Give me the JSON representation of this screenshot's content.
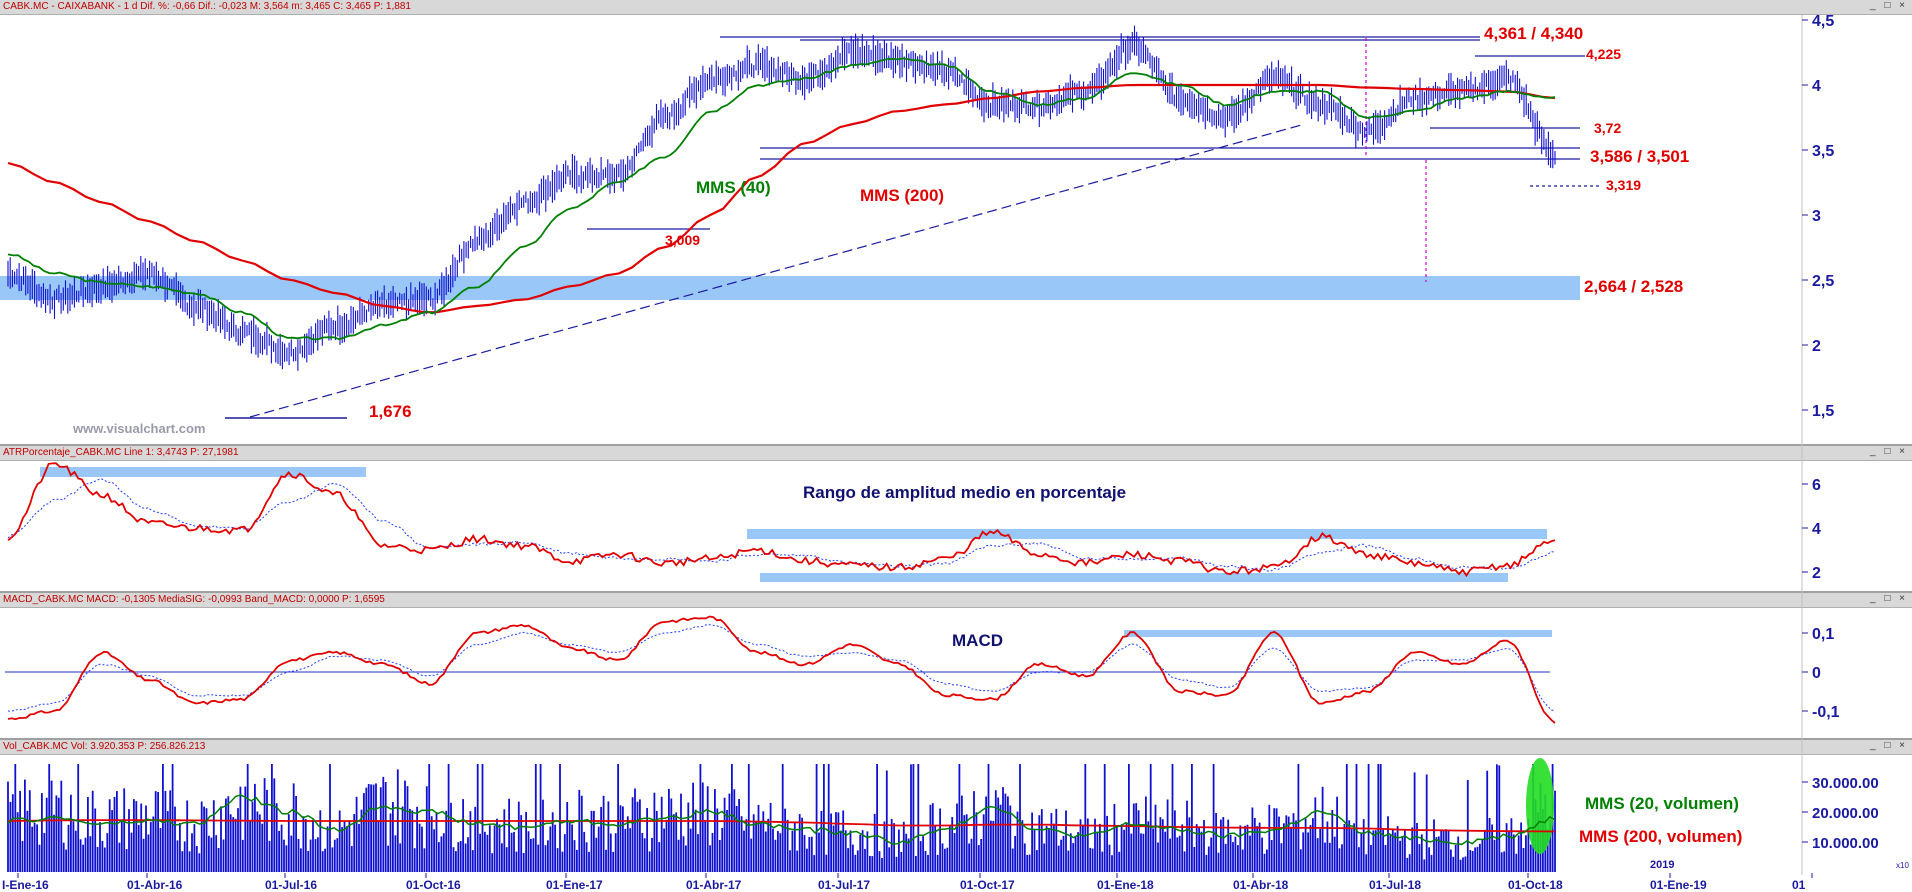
{
  "colors": {
    "price_bars": "#1010d0",
    "mms_short": "#008000",
    "mms_long": "#e00000",
    "band": "#99c8f8",
    "axis_text": "#1a1aa0",
    "annot_red": "#e00000",
    "annot_green": "#008000",
    "annot_navy": "#101070",
    "header_red": "#c00000",
    "magenta": "#d000d0",
    "watermark": "#9a9aaa"
  },
  "panes": {
    "price": {
      "header": "CABK.MC - CAIXABANK - 1 d  Dif. %: -0,66  Dif.: -0,023  M: 3,564  m: 3,465  C: 3,465  P: 1,881",
      "watermark": "www.visualchart.com",
      "yticks": [
        "4,5",
        "4",
        "3,5",
        "3",
        "2,5",
        "2",
        "1,5"
      ]
    },
    "atr": {
      "header": "ATRPorcentaje_CABK.MC  Line 1: 3,4743  P: 27,1981",
      "label": "Rango de amplitud medio en porcentaje",
      "yticks": [
        "6",
        "4",
        "2"
      ]
    },
    "macd": {
      "header": "MACD_CABK.MC  MACD: -0,1305  MediaSIG: -0,0993  Band_MACD: 0,0000  P: 1,6595",
      "label": "MACD",
      "yticks": [
        "0,1",
        "0",
        "-0,1"
      ]
    },
    "vol": {
      "header": "Vol_CABK.MC  Vol: 3.920.353  P: 256.826.213",
      "label_short": "MMS (20, volumen)",
      "label_long": "MMS (200, volumen)",
      "yticks": [
        "30.000.00",
        "20.000.00",
        "10.000.00"
      ]
    }
  },
  "window_buttons": "_ □ ×",
  "x_axis": {
    "labels": [
      "I-Ene-16",
      "01-Abr-16",
      "01-Jul-16",
      "01-Oct-16",
      "01-Ene-17",
      "01-Abr-17",
      "01-Jul-17",
      "01-Oct-17",
      "01-Ene-18",
      "01-Abr-18",
      "01-Jul-18",
      "01-Oct-18",
      "2019",
      "01-Ene-19",
      "01"
    ],
    "corner": "x10"
  },
  "annotations": {
    "mms40": "MMS (40)",
    "mms200": "MMS (200)",
    "level_4361": "4,361 / 4,340",
    "level_4225": "4,225",
    "level_372": "3,72",
    "level_3586": "3,586 / 3,501",
    "level_3319": "3,319",
    "level_3009": "3,009",
    "level_2664": "2,664 / 2,528",
    "level_1676": "1,676"
  },
  "chart_data": [
    {
      "type": "line",
      "pane": "price",
      "instrument": "CABK.MC - CAIXABANK",
      "x": [
        "2016-01",
        "2016-02",
        "2016-03",
        "2016-04",
        "2016-05",
        "2016-06",
        "2016-07",
        "2016-08",
        "2016-09",
        "2016-10",
        "2016-11",
        "2016-12",
        "2017-01",
        "2017-02",
        "2017-03",
        "2017-04",
        "2017-05",
        "2017-06",
        "2017-07",
        "2017-08",
        "2017-09",
        "2017-10",
        "2017-11",
        "2017-12",
        "2018-01",
        "2018-02",
        "2018-03",
        "2018-04",
        "2018-05",
        "2018-06",
        "2018-07",
        "2018-08",
        "2018-09",
        "2018-10"
      ],
      "series": [
        {
          "name": "CABK.MC",
          "values": [
            2.55,
            2.35,
            2.45,
            2.55,
            2.3,
            2.1,
            1.95,
            2.15,
            2.3,
            2.35,
            2.8,
            3.1,
            3.3,
            3.3,
            3.75,
            4.05,
            4.15,
            4.05,
            4.25,
            4.2,
            4.1,
            3.85,
            3.85,
            3.95,
            4.3,
            3.9,
            3.75,
            4.05,
            3.85,
            3.65,
            3.9,
            3.95,
            4.05,
            3.47
          ]
        },
        {
          "name": "MMS (40)",
          "values": [
            2.7,
            2.55,
            2.48,
            2.45,
            2.4,
            2.25,
            2.05,
            2.05,
            2.15,
            2.25,
            2.45,
            2.75,
            3.05,
            3.25,
            3.45,
            3.8,
            4.0,
            4.05,
            4.15,
            4.2,
            4.15,
            3.95,
            3.85,
            3.9,
            4.1,
            4.0,
            3.85,
            3.95,
            3.95,
            3.75,
            3.8,
            3.9,
            3.95,
            3.9
          ]
        },
        {
          "name": "MMS (200)",
          "values": [
            3.4,
            3.25,
            3.1,
            2.95,
            2.8,
            2.65,
            2.5,
            2.4,
            2.3,
            2.25,
            2.3,
            2.35,
            2.45,
            2.55,
            2.75,
            3.0,
            3.3,
            3.55,
            3.7,
            3.8,
            3.85,
            3.9,
            3.95,
            3.98,
            4.0,
            4.0,
            4.0,
            4.0,
            4.0,
            3.98,
            3.97,
            3.96,
            3.95,
            3.9
          ]
        }
      ],
      "ylim": [
        1.5,
        4.5
      ],
      "levels": [
        4.361,
        4.34,
        4.225,
        3.72,
        3.586,
        3.501,
        3.319,
        3.009,
        2.664,
        2.528,
        1.676
      ]
    },
    {
      "type": "line",
      "pane": "atr",
      "x": [
        "2016-01",
        "2016-02",
        "2016-03",
        "2016-04",
        "2016-05",
        "2016-06",
        "2016-07",
        "2016-08",
        "2016-09",
        "2016-10",
        "2016-11",
        "2016-12",
        "2017-01",
        "2017-02",
        "2017-03",
        "2017-04",
        "2017-05",
        "2017-06",
        "2017-07",
        "2017-08",
        "2017-09",
        "2017-10",
        "2017-11",
        "2017-12",
        "2018-01",
        "2018-02",
        "2018-03",
        "2018-04",
        "2018-05",
        "2018-06",
        "2018-07",
        "2018-08",
        "2018-09",
        "2018-10"
      ],
      "series": [
        {
          "name": "ATRPorcentaje",
          "values": [
            3.6,
            6.9,
            5.5,
            4.2,
            4.0,
            3.9,
            6.5,
            5.5,
            3.2,
            3.0,
            3.5,
            3.2,
            2.5,
            2.8,
            2.4,
            2.6,
            3.0,
            2.5,
            2.3,
            2.2,
            2.6,
            3.8,
            2.8,
            2.4,
            2.8,
            2.5,
            2.0,
            2.2,
            3.6,
            2.8,
            2.4,
            2.0,
            2.3,
            3.47
          ]
        }
      ],
      "ylim": [
        1.0,
        7.0
      ]
    },
    {
      "type": "line",
      "pane": "macd",
      "x": [
        "2016-01",
        "2016-02",
        "2016-03",
        "2016-04",
        "2016-05",
        "2016-06",
        "2016-07",
        "2016-08",
        "2016-09",
        "2016-10",
        "2016-11",
        "2016-12",
        "2017-01",
        "2017-02",
        "2017-03",
        "2017-04",
        "2017-05",
        "2017-06",
        "2017-07",
        "2017-08",
        "2017-09",
        "2017-10",
        "2017-11",
        "2017-12",
        "2018-01",
        "2018-02",
        "2018-03",
        "2018-04",
        "2018-05",
        "2018-06",
        "2018-07",
        "2018-08",
        "2018-09",
        "2018-10"
      ],
      "series": [
        {
          "name": "MACD",
          "values": [
            -0.12,
            -0.1,
            0.05,
            -0.02,
            -0.08,
            -0.07,
            0.03,
            0.05,
            0.02,
            -0.03,
            0.1,
            0.12,
            0.06,
            0.03,
            0.13,
            0.14,
            0.05,
            0.02,
            0.07,
            0.02,
            -0.06,
            -0.07,
            0.02,
            -0.01,
            0.1,
            -0.05,
            -0.06,
            0.1,
            -0.08,
            -0.05,
            0.05,
            0.02,
            0.08,
            -0.13
          ]
        },
        {
          "name": "MediaSIG",
          "values": [
            -0.1,
            -0.08,
            0.02,
            -0.01,
            -0.06,
            -0.06,
            0.0,
            0.04,
            0.03,
            -0.01,
            0.07,
            0.1,
            0.07,
            0.05,
            0.1,
            0.12,
            0.07,
            0.04,
            0.05,
            0.03,
            -0.03,
            -0.05,
            0.0,
            0.0,
            0.07,
            -0.02,
            -0.04,
            0.06,
            -0.05,
            -0.04,
            0.03,
            0.03,
            0.06,
            -0.1
          ]
        }
      ],
      "ylim": [
        -0.17,
        0.15
      ]
    },
    {
      "type": "bar",
      "pane": "vol",
      "x": [
        "2016-01",
        "2016-02",
        "2016-03",
        "2016-04",
        "2016-05",
        "2016-06",
        "2016-07",
        "2016-08",
        "2016-09",
        "2016-10",
        "2016-11",
        "2016-12",
        "2017-01",
        "2017-02",
        "2017-03",
        "2017-04",
        "2017-05",
        "2017-06",
        "2017-07",
        "2017-08",
        "2017-09",
        "2017-10",
        "2017-11",
        "2017-12",
        "2018-01",
        "2018-02",
        "2018-03",
        "2018-04",
        "2018-05",
        "2018-06",
        "2018-07",
        "2018-08",
        "2018-09",
        "2018-10"
      ],
      "series": [
        {
          "name": "Vol",
          "values": [
            20000,
            22000,
            18000,
            19000,
            17000,
            24000,
            21000,
            15000,
            23000,
            22000,
            18000,
            16000,
            19000,
            18000,
            20000,
            21000,
            17000,
            15000,
            14000,
            12000,
            16000,
            22000,
            15000,
            13000,
            17000,
            16000,
            14000,
            15000,
            19000,
            14000,
            12000,
            11000,
            13000,
            25000
          ]
        },
        {
          "name": "MMS (20, volumen)",
          "values": [
            17000,
            18000,
            16000,
            17000,
            16000,
            25000,
            20000,
            14000,
            22000,
            20000,
            16000,
            15000,
            17000,
            16000,
            18000,
            20000,
            16000,
            14000,
            13000,
            10000,
            14000,
            22000,
            14000,
            12000,
            16000,
            14000,
            12000,
            14000,
            20000,
            13000,
            11000,
            10000,
            12000,
            18000
          ]
        },
        {
          "name": "MMS (200, volumen)",
          "values": [
            17000,
            17200,
            17300,
            17300,
            17200,
            17100,
            17000,
            17000,
            17000,
            17000,
            17000,
            17000,
            17000,
            17000,
            17000,
            17000,
            16800,
            16500,
            16000,
            15500,
            15500,
            15800,
            15800,
            15500,
            15300,
            15000,
            14800,
            14700,
            14700,
            14500,
            14000,
            13800,
            13600,
            13500
          ]
        }
      ],
      "ylim": [
        0,
        38000
      ]
    }
  ]
}
